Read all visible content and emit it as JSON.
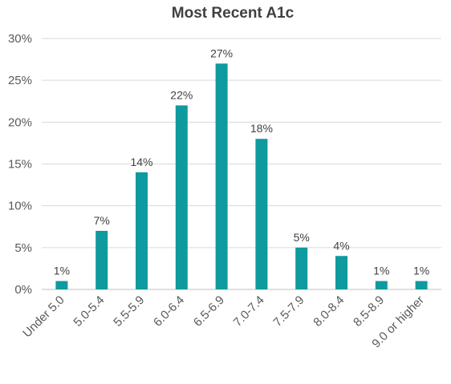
{
  "chart_data": {
    "type": "bar",
    "title": "Most Recent A1c",
    "categories": [
      "Under 5.0",
      "5.0-5.4",
      "5.5-5.9",
      "6.0-6.4",
      "6.5-6.9",
      "7.0-7.4",
      "7.5-7.9",
      "8.0-8.4",
      "8.5-8.9",
      "9.0 or higher"
    ],
    "values": [
      1,
      7,
      14,
      22,
      27,
      18,
      5,
      4,
      1,
      1
    ],
    "data_labels": [
      "1%",
      "7%",
      "14%",
      "22%",
      "27%",
      "18%",
      "5%",
      "4%",
      "1%",
      "1%"
    ],
    "y_ticks": [
      0,
      5,
      10,
      15,
      20,
      25,
      30
    ],
    "y_tick_labels": [
      "0%",
      "5%",
      "10%",
      "15%",
      "20%",
      "25%",
      "30%"
    ],
    "ylim": [
      0,
      30
    ],
    "xlabel": "",
    "ylabel": "",
    "grid": true,
    "legend": "none",
    "bar_color": "#0e9a9e"
  }
}
